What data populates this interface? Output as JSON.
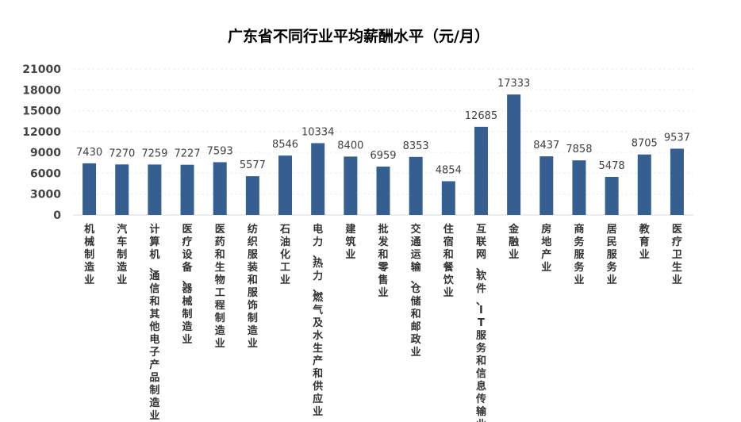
{
  "chart_data": {
    "type": "bar",
    "title": "广东省不同行业平均薪酬水平（元/月）",
    "xlabel": "",
    "ylabel": "",
    "ylim": [
      0,
      21000
    ],
    "yticks": [
      0,
      3000,
      6000,
      9000,
      12000,
      15000,
      18000,
      21000
    ],
    "grid": true,
    "bar_color": "#355f91",
    "categories": [
      "机械制造业",
      "汽车制造业",
      "计算机、通信和其他电子产品制造业",
      "医疗设备、器械制造业",
      "医药和生物工程制造业",
      "纺织服装和服饰制造业",
      "石油化工业",
      "电力、热力、燃气及水生产和供应业",
      "建筑业",
      "批发和零售业",
      "交通运输、仓储和邮政业",
      "住宿和餐饮业",
      "互联网、软件、IT服务和信息传输业",
      "金融业",
      "房地产业",
      "商务服务业",
      "居民服务业",
      "教育业",
      "医疗卫生业"
    ],
    "values": [
      7430,
      7270,
      7259,
      7227,
      7593,
      5577,
      8546,
      10334,
      8400,
      6959,
      8353,
      4854,
      12685,
      17333,
      8437,
      7858,
      5478,
      8705,
      9537
    ]
  }
}
